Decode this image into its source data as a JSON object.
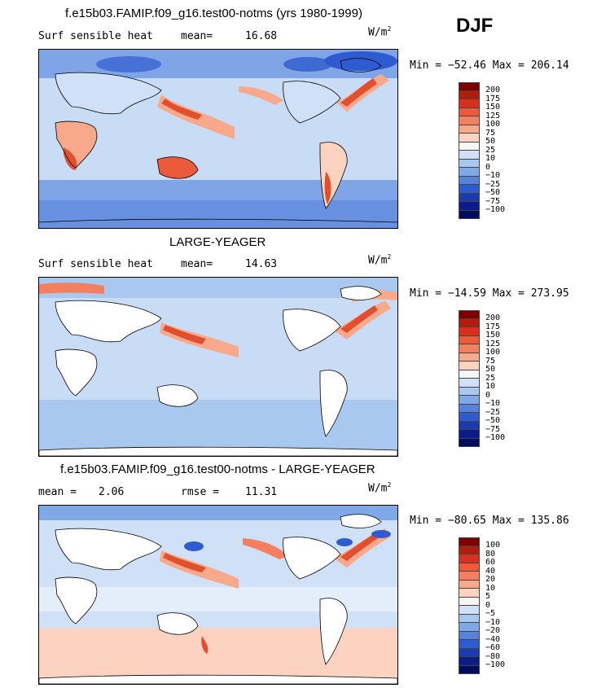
{
  "season": "DJF",
  "units_label": "W/m",
  "units_power": "2",
  "panels": [
    {
      "title": "f.e15b03.FAMIP.f09_g16.test00-notms (yrs 1980-1999)",
      "left_label": "Surf sensible heat",
      "stat1_label": "mean=",
      "stat1_value": "16.68",
      "stat2_label": "",
      "stat2_value": "",
      "minmax": "Min = −52.46 Max = 206.14",
      "colorbar": [
        "200",
        "175",
        "150",
        "125",
        "100",
        "75",
        "50",
        "25",
        "10",
        "0",
        "−10",
        "−25",
        "−50",
        "−75",
        "−100"
      ]
    },
    {
      "title": "LARGE-YEAGER",
      "left_label": "Surf sensible heat",
      "stat1_label": "mean=",
      "stat1_value": "14.63",
      "stat2_label": "",
      "stat2_value": "",
      "minmax": "Min = −14.59 Max = 273.95",
      "colorbar": [
        "200",
        "175",
        "150",
        "125",
        "100",
        "75",
        "50",
        "25",
        "10",
        "0",
        "−10",
        "−25",
        "−50",
        "−75",
        "−100"
      ]
    },
    {
      "title": "f.e15b03.FAMIP.f09_g16.test00-notms - LARGE-YEAGER",
      "left_label": "",
      "stat1_label": "mean =",
      "stat1_value": "2.06",
      "stat2_label": "rmse =",
      "stat2_value": "11.31",
      "minmax": "Min = −80.65 Max = 135.86",
      "colorbar": [
        "100",
        "80",
        "60",
        "40",
        "20",
        "10",
        "5",
        "0",
        "−5",
        "−10",
        "−20",
        "−40",
        "−60",
        "−80",
        "−100"
      ]
    }
  ],
  "palette": [
    "#7f0000",
    "#b21c0c",
    "#d7301f",
    "#ec5a3c",
    "#f47f5f",
    "#f9a98b",
    "#fcd3c0",
    "#f5f5f5",
    "#cfe0f7",
    "#a9c8f0",
    "#7fa9e6",
    "#5682dc",
    "#2f5bd0",
    "#1c3bb0",
    "#0b1d8a",
    "#030c5c"
  ],
  "colors": {
    "ocean_light": "#c9dcf5",
    "ocean_mid": "#a7c3ee",
    "ocean_deep": "#7fa5e6",
    "warm_light": "#fcd3c0",
    "warm_mid": "#f49a7a",
    "warm_strong": "#e0502f",
    "cold_strong": "#2f5bd0"
  }
}
